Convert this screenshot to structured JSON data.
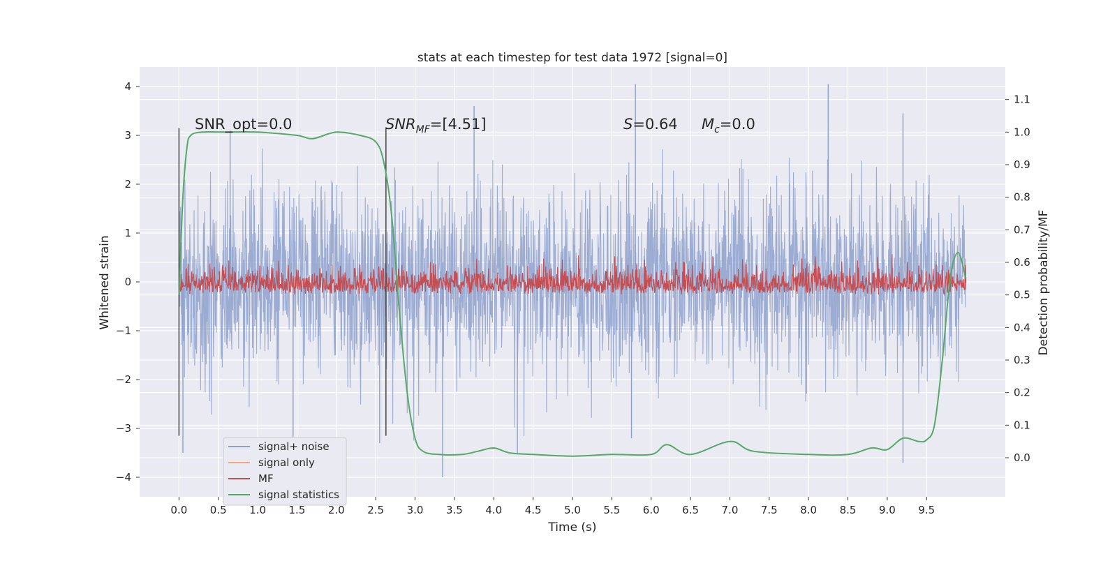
{
  "chart_data": {
    "type": "line",
    "title": "stats at each timestep for test data 1972 [signal=0]",
    "xlabel": "Time (s)",
    "ylabel": "Whitened strain",
    "ylabel_right": "Detection probability/MF",
    "xlim": [
      -0.5,
      10.5
    ],
    "ylim": [
      -4.4,
      4.4
    ],
    "ylim_right": [
      -0.12,
      1.2
    ],
    "xticks": [
      "0.0",
      "0.5",
      "1.0",
      "1.5",
      "2.0",
      "2.5",
      "3.0",
      "3.5",
      "4.0",
      "4.5",
      "5.0",
      "5.5",
      "6.0",
      "6.5",
      "7.0",
      "7.5",
      "8.0",
      "8.5",
      "9.0",
      "9.5"
    ],
    "xtick_values": [
      0,
      0.5,
      1,
      1.5,
      2,
      2.5,
      3,
      3.5,
      4,
      4.5,
      5,
      5.5,
      6,
      6.5,
      7,
      7.5,
      8,
      8.5,
      9,
      9.5
    ],
    "yticks": [
      "4",
      "3",
      "2",
      "1",
      "0",
      "−1",
      "−2",
      "−3",
      "−4"
    ],
    "ytick_values": [
      4,
      3,
      2,
      1,
      0,
      -1,
      -2,
      -3,
      -4
    ],
    "yticks_right": [
      "1.1",
      "1.0",
      "0.9",
      "0.8",
      "0.7",
      "0.6",
      "0.5",
      "0.4",
      "0.3",
      "0.2",
      "0.1",
      "0.0"
    ],
    "ytick_right_values": [
      1.1,
      1.0,
      0.9,
      0.8,
      0.7,
      0.6,
      0.5,
      0.4,
      0.3,
      0.2,
      0.1,
      0.0
    ],
    "grid": true,
    "legend_position": "lower-left",
    "vertical_lines_x": [
      0.0,
      2.63
    ],
    "annotations": {
      "snr_opt": "SNR_opt=0.0",
      "snr_mf_sym": "SNR",
      "snr_mf_sub": "MF",
      "snr_mf_val": "=[4.51]",
      "s_sym": "S",
      "s_val": "=0.64",
      "mc_sym": "M",
      "mc_sub": "c",
      "mc_val": "=0.0"
    },
    "series": [
      {
        "name": "signal+ noise",
        "color": "#8da0cb",
        "description_range": [
          -4.0,
          4.05
        ],
        "peaks": [
          {
            "x": 0.05,
            "y": -3.5
          },
          {
            "x": 0.65,
            "y": 3.1
          },
          {
            "x": 1.45,
            "y": -3.2
          },
          {
            "x": 2.55,
            "y": -3.3
          },
          {
            "x": 3.35,
            "y": -4.0
          },
          {
            "x": 4.3,
            "y": -3.5
          },
          {
            "x": 5.8,
            "y": 4.05
          },
          {
            "x": 5.75,
            "y": -3.2
          },
          {
            "x": 8.25,
            "y": 4.05
          },
          {
            "x": 9.2,
            "y": -3.7
          },
          {
            "x": 9.2,
            "y": 3.45
          },
          {
            "x": 3.75,
            "y": 3.6
          }
        ]
      },
      {
        "name": "signal only",
        "color": "#f4a582",
        "values_constant": 0.0
      },
      {
        "name": "MF",
        "color": "#c44e52",
        "axis": "right",
        "description_range": [
          0.5,
          0.64
        ]
      },
      {
        "name": "signal statistics",
        "color": "#55a868",
        "axis": "right",
        "x": [
          0.0,
          0.05,
          0.1,
          0.15,
          0.3,
          0.6,
          1.0,
          1.5,
          1.7,
          2.0,
          2.3,
          2.5,
          2.6,
          2.7,
          2.8,
          2.9,
          3.0,
          3.1,
          3.3,
          3.6,
          3.8,
          4.0,
          4.2,
          4.5,
          5.0,
          5.5,
          6.0,
          6.2,
          6.5,
          7.0,
          7.3,
          8.0,
          8.5,
          8.8,
          9.0,
          9.2,
          9.4,
          9.5,
          9.6,
          9.7,
          9.8,
          9.9,
          10.0
        ],
        "y": [
          0.5,
          0.8,
          0.95,
          0.99,
          1.0,
          1.0,
          1.0,
          0.99,
          0.98,
          1.0,
          0.99,
          0.97,
          0.91,
          0.75,
          0.45,
          0.2,
          0.06,
          0.02,
          0.01,
          0.01,
          0.02,
          0.03,
          0.015,
          0.01,
          0.005,
          0.01,
          0.01,
          0.04,
          0.01,
          0.05,
          0.02,
          0.01,
          0.01,
          0.03,
          0.025,
          0.06,
          0.05,
          0.055,
          0.1,
          0.3,
          0.55,
          0.63,
          0.55
        ]
      }
    ]
  }
}
